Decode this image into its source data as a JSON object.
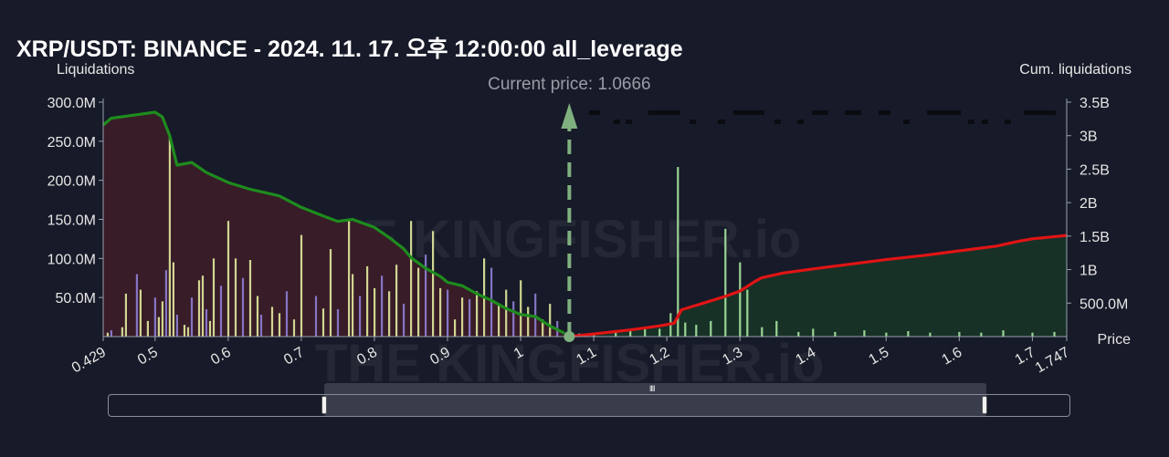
{
  "title": "XRP/USDT: BINANCE - 2024. 11. 17. 오후 12:00:00 all_leverage",
  "watermark": "THE KINGFISHER.io",
  "colors": {
    "background": "#171a28",
    "short_fill": "#3a1c28",
    "long_fill": "#173327",
    "green_line": "#1e8c1e",
    "red_line": "#e01414",
    "bar_yellow": "#e2eb9c",
    "bar_purple": "#8f7fd6",
    "bar_green": "#a8e8a0",
    "current_price": "#7fb07f"
  },
  "chart_data": {
    "type": "bar",
    "xlabel": "Price",
    "ylabel_left": "Liquidations",
    "ylabel_right": "Cum. liquidations",
    "current_price_label": "Current price: 1.0666",
    "current_price": 1.0666,
    "xlim": [
      0.429,
      1.747
    ],
    "ylim_left": [
      0,
      300000000
    ],
    "ylim_right": [
      0,
      3500000000
    ],
    "x_ticks": [
      "0.429",
      "0.5",
      "0.6",
      "0.7",
      "0.8",
      "0.9",
      "1",
      "1.1",
      "1.2",
      "1.3",
      "1.4",
      "1.5",
      "1.6",
      "1.7",
      "1.747"
    ],
    "x_tick_values": [
      0.429,
      0.5,
      0.6,
      0.7,
      0.8,
      0.9,
      1.0,
      1.1,
      1.2,
      1.3,
      1.4,
      1.5,
      1.6,
      1.7,
      1.747
    ],
    "y_left_ticks": [
      "50.0M",
      "100.0M",
      "150.0M",
      "200.0M",
      "250.0M",
      "300.0M"
    ],
    "y_left_tick_values": [
      50000000,
      100000000,
      150000000,
      200000000,
      250000000,
      300000000
    ],
    "y_right_ticks": [
      "500.0M",
      "1B",
      "1.5B",
      "2B",
      "2.5B",
      "3B",
      "3.5B"
    ],
    "y_right_tick_values": [
      500000000,
      1000000000,
      1500000000,
      2000000000,
      2500000000,
      3000000000,
      3500000000
    ],
    "cumulative_short": {
      "x": [
        0.429,
        0.44,
        0.46,
        0.48,
        0.5,
        0.51,
        0.52,
        0.53,
        0.55,
        0.57,
        0.6,
        0.63,
        0.65,
        0.67,
        0.7,
        0.73,
        0.75,
        0.77,
        0.8,
        0.82,
        0.84,
        0.85,
        0.87,
        0.89,
        0.9,
        0.92,
        0.94,
        0.96,
        0.98,
        1.0,
        1.02,
        1.04,
        1.06
      ],
      "y": [
        3160000000,
        3260000000,
        3290000000,
        3320000000,
        3350000000,
        3280000000,
        3000000000,
        2560000000,
        2600000000,
        2450000000,
        2300000000,
        2200000000,
        2150000000,
        2100000000,
        1930000000,
        1800000000,
        1720000000,
        1750000000,
        1630000000,
        1480000000,
        1310000000,
        1180000000,
        1020000000,
        900000000,
        810000000,
        760000000,
        640000000,
        540000000,
        420000000,
        330000000,
        300000000,
        160000000,
        50000000
      ]
    },
    "cumulative_long": {
      "x": [
        1.066,
        1.1,
        1.15,
        1.19,
        1.21,
        1.22,
        1.25,
        1.28,
        1.3,
        1.32,
        1.33,
        1.36,
        1.4,
        1.45,
        1.5,
        1.55,
        1.6,
        1.65,
        1.68,
        1.7,
        1.747
      ],
      "y": [
        0,
        40000000,
        100000000,
        160000000,
        200000000,
        400000000,
        500000000,
        600000000,
        680000000,
        820000000,
        880000000,
        950000000,
        1010000000,
        1080000000,
        1150000000,
        1210000000,
        1280000000,
        1350000000,
        1420000000,
        1460000000,
        1510000000
      ]
    },
    "bars_short": {
      "x": [
        0.435,
        0.44,
        0.455,
        0.46,
        0.475,
        0.48,
        0.49,
        0.5,
        0.505,
        0.51,
        0.515,
        0.52,
        0.525,
        0.53,
        0.54,
        0.545,
        0.55,
        0.56,
        0.565,
        0.57,
        0.575,
        0.58,
        0.59,
        0.6,
        0.61,
        0.62,
        0.63,
        0.64,
        0.645,
        0.66,
        0.67,
        0.68,
        0.69,
        0.7,
        0.72,
        0.73,
        0.74,
        0.75,
        0.765,
        0.77,
        0.78,
        0.79,
        0.8,
        0.81,
        0.82,
        0.83,
        0.84,
        0.85,
        0.86,
        0.87,
        0.88,
        0.89,
        0.9,
        0.91,
        0.92,
        0.93,
        0.94,
        0.95,
        0.96,
        0.97,
        0.98,
        0.99,
        1.0,
        1.01,
        1.02,
        1.03,
        1.04,
        1.05
      ],
      "y": [
        5000000,
        8000000,
        12000000,
        55000000,
        80000000,
        60000000,
        20000000,
        50000000,
        25000000,
        45000000,
        85000000,
        258000000,
        95000000,
        28000000,
        15000000,
        12000000,
        50000000,
        72000000,
        78000000,
        35000000,
        20000000,
        100000000,
        65000000,
        148000000,
        100000000,
        75000000,
        98000000,
        52000000,
        28000000,
        38000000,
        30000000,
        58000000,
        22000000,
        130000000,
        52000000,
        36000000,
        112000000,
        35000000,
        150000000,
        80000000,
        52000000,
        90000000,
        62000000,
        78000000,
        58000000,
        92000000,
        42000000,
        148000000,
        88000000,
        105000000,
        135000000,
        62000000,
        60000000,
        22000000,
        50000000,
        48000000,
        58000000,
        100000000,
        88000000,
        42000000,
        60000000,
        45000000,
        72000000,
        38000000,
        55000000,
        22000000,
        42000000,
        20000000
      ]
    },
    "bars_long": {
      "x": [
        1.08,
        1.1,
        1.13,
        1.15,
        1.17,
        1.19,
        1.205,
        1.215,
        1.225,
        1.24,
        1.26,
        1.28,
        1.3,
        1.31,
        1.33,
        1.35,
        1.38,
        1.4,
        1.43,
        1.47,
        1.5,
        1.53,
        1.56,
        1.6,
        1.63,
        1.66,
        1.7,
        1.73
      ],
      "y": [
        4000000,
        5000000,
        5000000,
        8000000,
        12000000,
        10000000,
        30000000,
        217000000,
        18000000,
        15000000,
        20000000,
        138000000,
        95000000,
        60000000,
        12000000,
        20000000,
        6000000,
        10000000,
        6000000,
        8000000,
        5000000,
        7000000,
        5000000,
        6000000,
        5000000,
        8000000,
        5000000,
        6000000
      ]
    },
    "grid": false,
    "legend": "none"
  },
  "range_slider": {
    "grip_glyph": "‖‖"
  }
}
